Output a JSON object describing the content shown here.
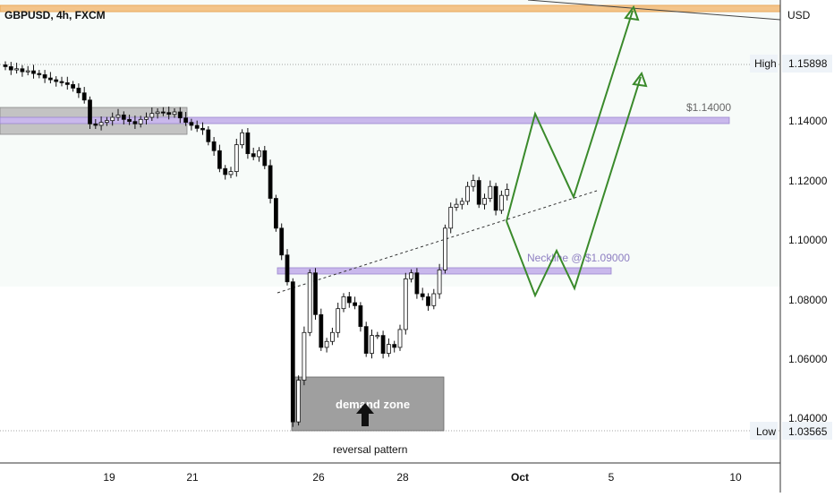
{
  "header": {
    "symbol_label": "GBPUSD, 4h, FXCM"
  },
  "price_axis": {
    "currency": "USD",
    "high_label": "High",
    "high_value": "1.15898",
    "low_label": "Low",
    "low_value": "1.03565"
  },
  "annotations": {
    "resistance_label": "$1.14000",
    "neckline_label": "Neckline @ $1.09000",
    "demand_zone_label": "demand zone",
    "reversal_label": "reversal pattern"
  },
  "colors": {
    "bull_candle": "#ffffff",
    "bear_candle": "#000000",
    "zone_purple": "#b9a6e3",
    "demand_gray": "#8e8e8e",
    "projection_green": "#3a8a2b",
    "top_band": "#f3c489",
    "upper_bg": "#f7fbf9"
  },
  "chart_data": {
    "type": "candlestick",
    "symbol": "GBPUSD",
    "timeframe": "4h",
    "source": "FXCM",
    "x_ticks": [
      "19",
      "21",
      "26",
      "28",
      "Oct",
      "5",
      "10"
    ],
    "y_ticks": [
      "1.14000",
      "1.12000",
      "1.10000",
      "1.08000",
      "1.06000",
      "1.04000"
    ],
    "y_range": [
      1.0245,
      1.1645
    ],
    "candles_close": [
      1.1582,
      1.1571,
      1.1575,
      1.1565,
      1.1568,
      1.1559,
      1.1555,
      1.1544,
      1.1538,
      1.1532,
      1.1528,
      1.1522,
      1.151,
      1.1494,
      1.147,
      1.139,
      1.1385,
      1.1395,
      1.1401,
      1.1412,
      1.142,
      1.1405,
      1.1398,
      1.139,
      1.1405,
      1.1412,
      1.1425,
      1.143,
      1.1428,
      1.1422,
      1.143,
      1.141,
      1.1395,
      1.1385,
      1.1375,
      1.137,
      1.133,
      1.13,
      1.124,
      1.122,
      1.123,
      1.132,
      1.136,
      1.129,
      1.128,
      1.13,
      1.125,
      1.114,
      1.104,
      1.095,
      1.086,
      1.039,
      1.053,
      1.069,
      1.089,
      1.075,
      1.064,
      1.066,
      1.069,
      1.077,
      1.081,
      1.079,
      1.078,
      1.071,
      1.062,
      1.068,
      1.068,
      1.062,
      1.065,
      1.064,
      1.07,
      1.087,
      1.089,
      1.082,
      1.081,
      1.078,
      1.082,
      1.09,
      1.104,
      1.111,
      1.112,
      1.113,
      1.118,
      1.12,
      1.112,
      1.114,
      1.118,
      1.11,
      1.115,
      1.117
    ],
    "resistance_level": 1.14,
    "neckline": 1.09,
    "demand_zone": {
      "top": 1.055,
      "bottom": 1.037
    },
    "projection_paths": [
      [
        [
          1.107,
          0
        ],
        [
          1.142,
          0
        ],
        [
          1.113,
          0
        ],
        [
          1.16,
          0
        ]
      ],
      [
        [
          1.107,
          0
        ],
        [
          1.082,
          0
        ],
        [
          1.097,
          0
        ],
        [
          1.085,
          0
        ],
        [
          1.146,
          0
        ]
      ]
    ]
  }
}
